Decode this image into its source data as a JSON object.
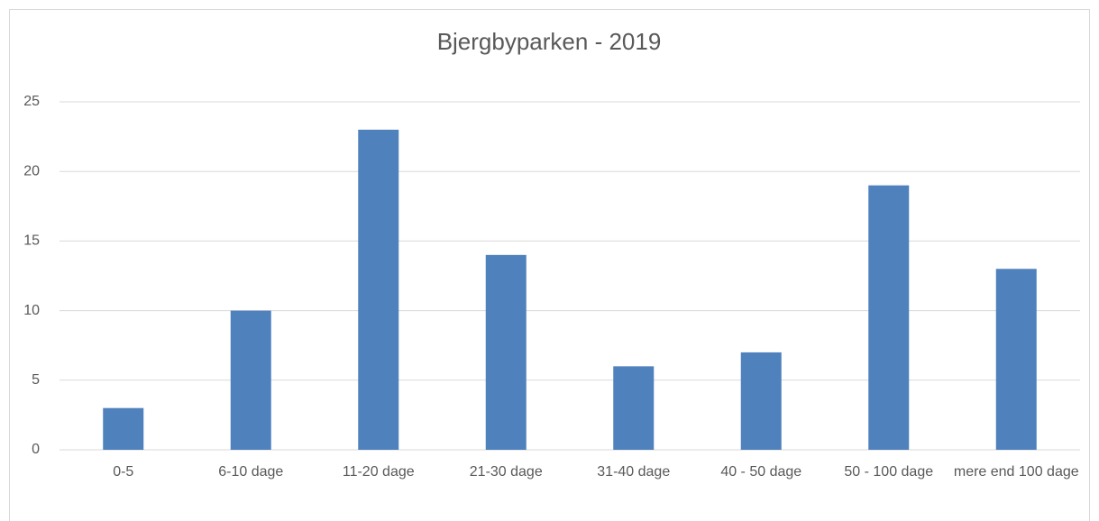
{
  "chart_data": {
    "type": "bar",
    "title": "Bjergbyparken - 2019",
    "categories": [
      "0-5",
      "6-10 dage",
      "11-20 dage",
      "21-30 dage",
      "31-40 dage",
      "40 - 50 dage",
      "50 - 100 dage",
      "mere end 100 dage"
    ],
    "values": [
      3,
      10,
      23,
      14,
      6,
      7,
      19,
      13
    ],
    "color": "#4f81bd",
    "ylim": [
      0,
      25
    ],
    "yticks": [
      0,
      5,
      10,
      15,
      20,
      25
    ],
    "grid": true
  }
}
